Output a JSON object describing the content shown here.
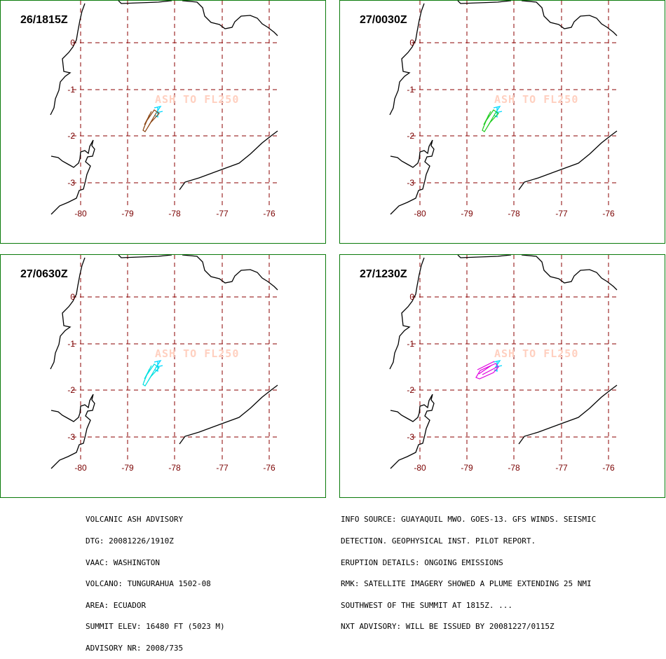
{
  "panels": [
    {
      "label": "26/1815Z",
      "plume_color": "#8b4513",
      "plume_shape": "south"
    },
    {
      "label": "27/0030Z",
      "plume_color": "#22cc22",
      "plume_shape": "south"
    },
    {
      "label": "27/0630Z",
      "plume_color": "#00e0e0",
      "plume_shape": "south"
    },
    {
      "label": "27/1230Z",
      "plume_color": "#e000e0",
      "plume_shape": "west"
    }
  ],
  "map": {
    "lon_labels": [
      "-80",
      "-79",
      "-78",
      "-77",
      "-76"
    ],
    "lat_labels": [
      "0",
      "-1",
      "-2",
      "-3"
    ],
    "ash_text": "ASH TO FL250",
    "grid_color": "#8b0000",
    "label_color": "#7a0000",
    "ash_text_color": "#ffd0c0",
    "coast_color": "#000000",
    "volcano_color": "#00d8ff"
  },
  "advisory_left": [
    "VOLCANIC ASH ADVISORY",
    "DTG: 20081226/1910Z",
    "VAAC: WASHINGTON",
    "VOLCANO: TUNGURAHUA 1502-08",
    "AREA: ECUADOR",
    "SUMMIT ELEV: 16480 FT (5023 M)",
    "ADVISORY NR: 2008/735"
  ],
  "advisory_right": [
    "INFO SOURCE: GUAYAQUIL MWO. GOES-13. GFS WINDS. SEISMIC",
    "DETECTION. GEOPHYSICAL INST. PILOT REPORT.",
    "ERUPTION DETAILS: ONGOING EMISSIONS",
    "RMK: SATELLITE IMAGERY SHOWED A PLUME EXTENDING 25 NMI",
    "SOUTHWEST OF THE SUMMIT AT 1815Z. ...",
    "NXT ADVISORY: WILL BE ISSUED BY 20081227/0115Z"
  ]
}
